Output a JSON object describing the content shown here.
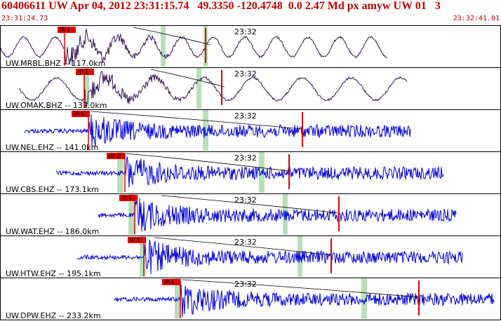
{
  "header": {
    "title": "60406611 UW Apr 04, 2012 23:31:15.74   49.3350 -120.4748  0.0 2.47 Md px amyw UW 01   3",
    "time_start": "23:31:24.73",
    "time_end": "23:32:41.01"
  },
  "colors": {
    "header_text": "#c00000",
    "trace_bh": "#3a1a5c",
    "trace_eh": "#0000e0",
    "pick_red": "#e00000",
    "pick_box": "#e00000",
    "window_green": "#b8e0b8",
    "border": "#000000"
  },
  "traces": [
    {
      "label": "UW.MRBL.BHZ -- 117.0km",
      "time_label": "23:32",
      "pick_label": "iP:1",
      "type": "bh"
    },
    {
      "label": "UW.OMAK.BHZ -- 137.0km",
      "time_label": "23:32",
      "pick_label": "iP:1",
      "type": "bh"
    },
    {
      "label": "UW.NEL.EHZ -- 141.0km",
      "time_label": "23:32",
      "pick_label": "iP:1",
      "type": "eh"
    },
    {
      "label": "UW.CBS.EHZ -- 173.1km",
      "time_label": "23:32",
      "pick_label": "eP:2",
      "type": "eh"
    },
    {
      "label": "UW.WAT.EHZ -- 186.0km",
      "time_label": "23:32",
      "pick_label": "iP:1",
      "type": "eh"
    },
    {
      "label": "UW.HTW.EHZ -- 195.1km",
      "time_label": "23:32",
      "pick_label": "iP:1",
      "type": "eh"
    },
    {
      "label": "UW.DPW.EHZ -- 233.2km",
      "time_label": "23:32",
      "pick_label": "iP:1",
      "type": "eh"
    }
  ]
}
